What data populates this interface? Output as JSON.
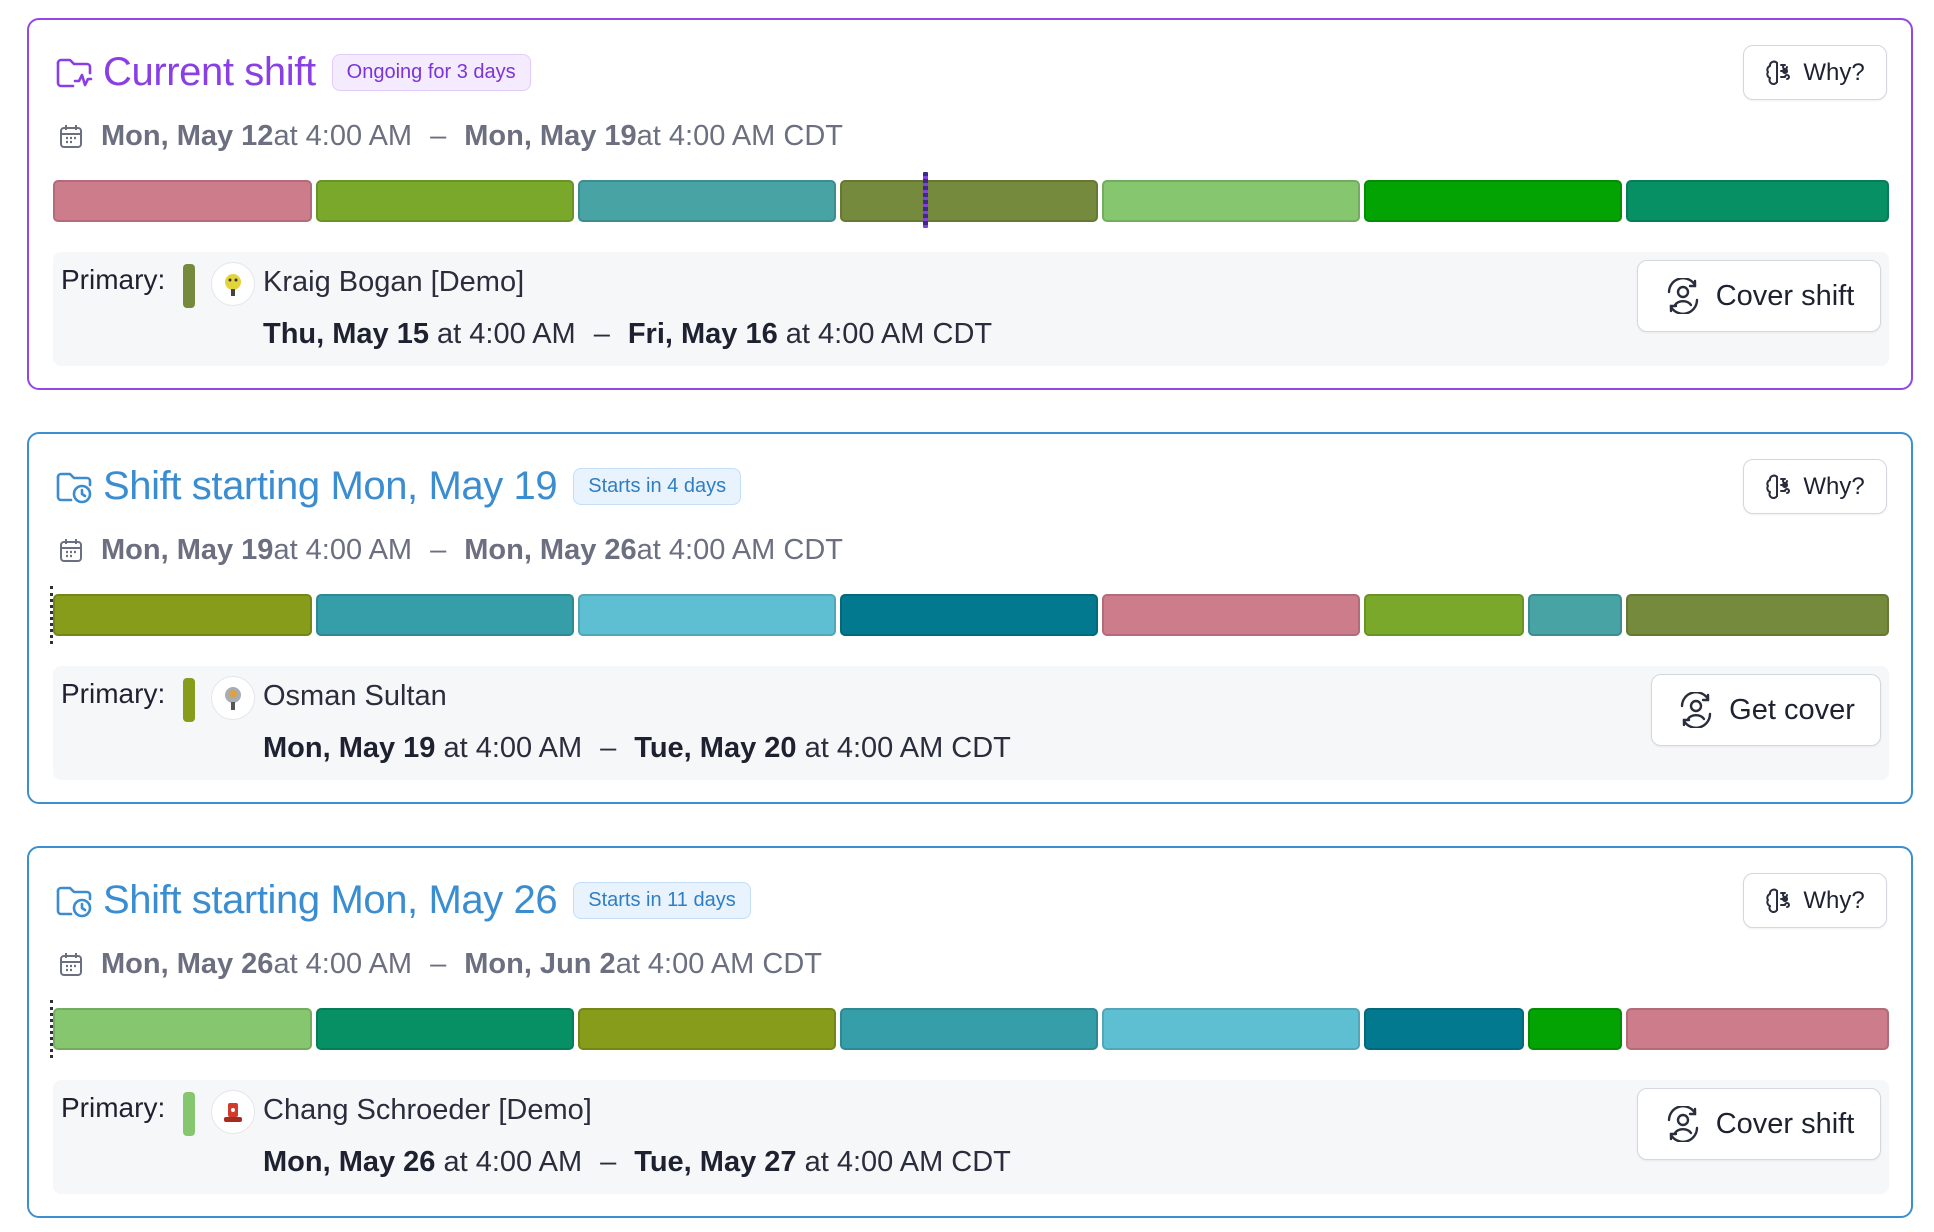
{
  "shifts": [
    {
      "title": "Current shift",
      "badge": "Ongoing for 3 days",
      "why_label": "Why?",
      "range": {
        "start_day": "Mon, May 12",
        "start_time": " at 4:00 AM",
        "end_day": "Mon, May 19",
        "end_time": " at 4:00 AM CDT",
        "dash": "–"
      },
      "timeline_colors": [
        "#cd7c8b",
        "#7aa82a",
        "#47a3a4",
        "#758a3c",
        "#86c66e",
        "#04a304",
        "#069064"
      ],
      "primary": {
        "label": "Primary:",
        "name": "Kraig Bogan [Demo]",
        "color": "#758a3c",
        "start_day": "Thu, May 15",
        "start_time": " at 4:00 AM",
        "end_day": "Fri, May 16",
        "end_time": " at 4:00 AM CDT",
        "dash": "–"
      },
      "action_label": "Cover shift",
      "avatar_color": "#e3d43a"
    },
    {
      "title": "Shift starting Mon, May 19",
      "badge": "Starts in 4 days",
      "why_label": "Why?",
      "range": {
        "start_day": "Mon, May 19",
        "start_time": " at 4:00 AM",
        "end_day": "Mon, May 26",
        "end_time": " at 4:00 AM CDT",
        "dash": "–"
      },
      "timeline_colors": [
        "#869c1a",
        "#369ea9",
        "#5ebfd3",
        "#03798f",
        "#cd7c8b",
        "#7aa82a",
        "#47a3a4",
        "#758a3c"
      ],
      "primary": {
        "label": "Primary:",
        "name": "Osman Sultan",
        "color": "#869c1a",
        "start_day": "Mon, May 19",
        "start_time": " at 4:00 AM",
        "end_day": "Tue, May 20",
        "end_time": " at 4:00 AM CDT",
        "dash": "–"
      },
      "action_label": "Get cover",
      "avatar_color": "#8a8f9c"
    },
    {
      "title": "Shift starting Mon, May 26",
      "badge": "Starts in 11 days",
      "why_label": "Why?",
      "range": {
        "start_day": "Mon, May 26",
        "start_time": " at 4:00 AM",
        "end_day": "Mon, Jun 2",
        "end_time": " at 4:00 AM CDT",
        "dash": "–"
      },
      "timeline_colors": [
        "#86c66e",
        "#069064",
        "#869c1a",
        "#369ea9",
        "#5ebfd3",
        "#03798f",
        "#04a304",
        "#cd7c8b"
      ],
      "primary": {
        "label": "Primary:",
        "name": "Chang Schroeder [Demo]",
        "color": "#86c66e",
        "start_day": "Mon, May 26",
        "start_time": " at 4:00 AM",
        "end_day": "Tue, May 27",
        "end_time": " at 4:00 AM CDT",
        "dash": "–"
      },
      "action_label": "Cover shift",
      "avatar_color": "#d23a2c"
    }
  ]
}
